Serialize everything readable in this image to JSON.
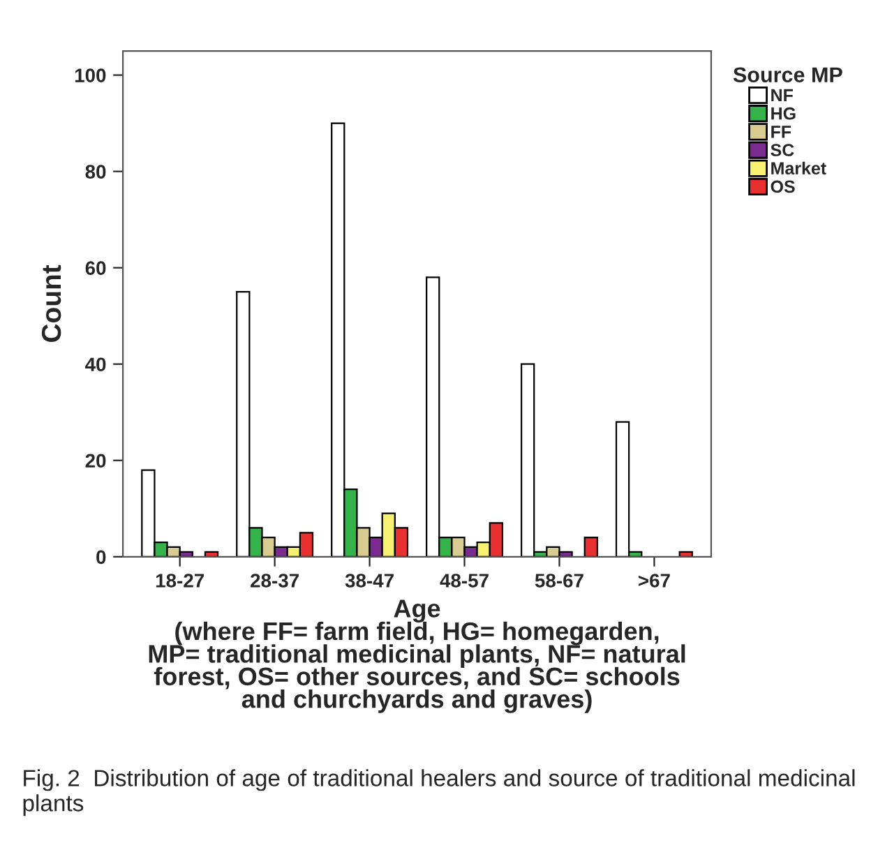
{
  "chart_data": {
    "type": "bar",
    "xlabel": "Age\n(where FF= farm field, HG= homegarden,\nMP= traditional medicinal plants, NF= natural\nforest, OS= other sources, and SC= schools\nand churchyards and graves)",
    "ylabel": "Count",
    "legend_title": "Source MP",
    "categories": [
      "18-27",
      "28-37",
      "38-47",
      "48-57",
      "58-67",
      ">67"
    ],
    "series": [
      {
        "name": "NF",
        "color": "#ffffff",
        "values": [
          18,
          55,
          90,
          58,
          40,
          28
        ]
      },
      {
        "name": "HG",
        "color": "#33b34a",
        "values": [
          3,
          6,
          14,
          4,
          1,
          1
        ]
      },
      {
        "name": "FF",
        "color": "#d8cc90",
        "values": [
          2,
          4,
          6,
          4,
          2,
          0
        ]
      },
      {
        "name": "SC",
        "color": "#7b2a8f",
        "values": [
          1,
          2,
          4,
          2,
          1,
          0
        ]
      },
      {
        "name": "Market",
        "color": "#f8f070",
        "values": [
          0,
          2,
          9,
          3,
          0,
          0
        ]
      },
      {
        "name": "OS",
        "color": "#e83030",
        "values": [
          1,
          5,
          6,
          7,
          4,
          1
        ]
      }
    ],
    "ylim": [
      0,
      105
    ],
    "yticks": [
      0,
      20,
      40,
      60,
      80,
      100
    ],
    "grid": false,
    "legend": "right",
    "annotations": [
      "Fig. 2  Distribution of age of traditional healers and source of traditional medicinal plants"
    ]
  }
}
